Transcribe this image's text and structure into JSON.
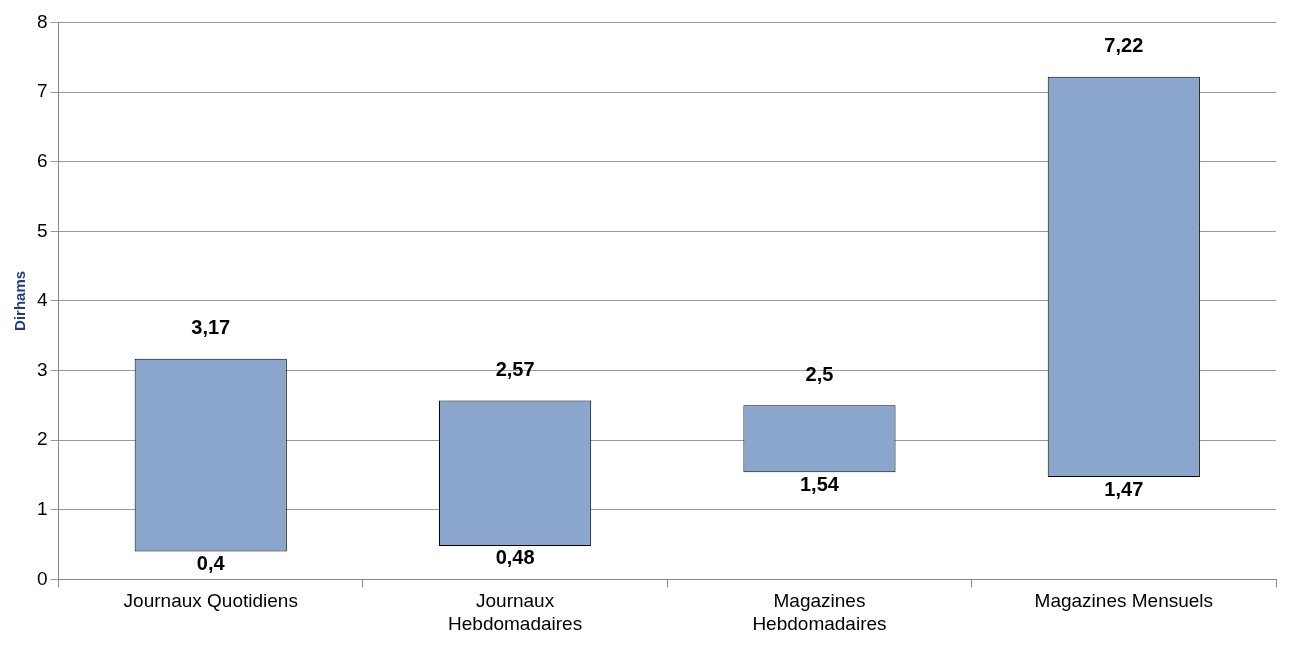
{
  "chart_data": {
    "type": "bar",
    "ylabel": "Dirhams",
    "categories": [
      "Journaux Quotidiens",
      "Journaux\nHebdomadaires",
      "Magazines\nHebdomadaires",
      "Magazines Mensuels"
    ],
    "base": [
      0.4,
      0.48,
      1.54,
      1.47
    ],
    "values": [
      2.77,
      2.09,
      0.96,
      5.75
    ],
    "color": "#8aa6cc",
    "ylim": [
      0,
      8
    ],
    "yticks": [
      0,
      1,
      2,
      3,
      4,
      5,
      6,
      7,
      8
    ],
    "grid": "y",
    "legend": false,
    "annotations": [
      {
        "text": "3,17",
        "x": "Journaux Quotidiens",
        "y": 3.17
      },
      {
        "text": "0,4",
        "x": "Journaux Quotidiens",
        "y": 0.4
      },
      {
        "text": "2,57",
        "x": "Journaux\nHebdomadaires",
        "y": 2.57
      },
      {
        "text": "0,48",
        "x": "Journaux\nHebdomadaires",
        "y": 0.48
      },
      {
        "text": "2,5",
        "x": "Magazines\nHebdomadaires",
        "y": 2.5
      },
      {
        "text": "1,54",
        "x": "Magazines\nHebdomadaires",
        "y": 1.54
      },
      {
        "text": "7,22",
        "x": "Magazines Mensuels",
        "y": 7.22
      },
      {
        "text": "1,47",
        "x": "Magazines Mensuels",
        "y": 1.47
      }
    ]
  }
}
